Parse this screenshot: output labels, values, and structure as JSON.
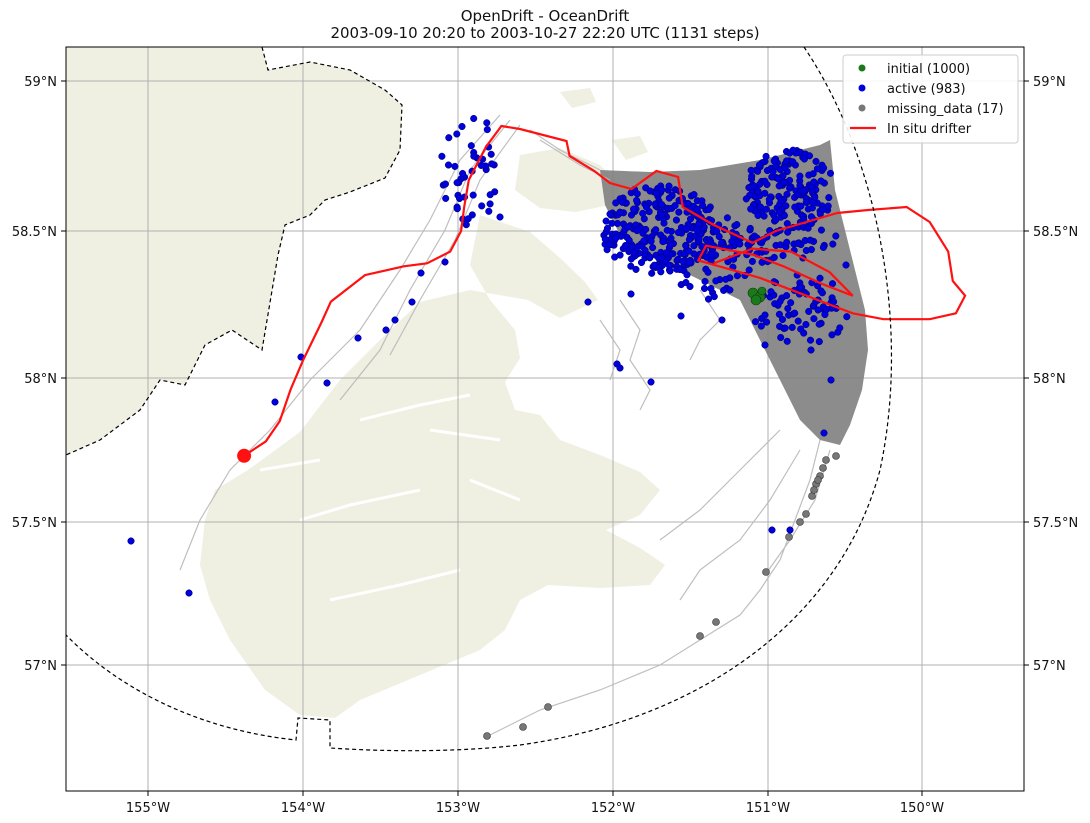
{
  "title": {
    "line1": "OpenDrift - OceanDrift",
    "line2": "2003-09-10 20:20 to 2003-10-27 22:20 UTC (1131 steps)"
  },
  "colors": {
    "land": "#efefe2",
    "grid": "#b0b0b0",
    "trajectory": "#b8b8b8",
    "plume": "#808080",
    "initial": "#1a7a1a",
    "active": "#0000dd",
    "missing": "#777777",
    "drifter": "#ff1111"
  },
  "axes": {
    "lon_ticks": [
      "155°W",
      "154°W",
      "153°W",
      "152°W",
      "151°W",
      "150°W"
    ],
    "lat_ticks": [
      "59°N",
      "58.5°N",
      "58°N",
      "57.5°N",
      "57°N"
    ]
  },
  "legend": {
    "items": [
      {
        "label": "initial (1000)",
        "kind": "initial"
      },
      {
        "label": "active (983)",
        "kind": "active"
      },
      {
        "label": "missing_data (17)",
        "kind": "missing"
      },
      {
        "label": "In situ drifter",
        "kind": "drifter"
      }
    ]
  },
  "chart_data": {
    "type": "map",
    "lon_range": [
      -155.55,
      -149.35
    ],
    "lat_range": [
      56.58,
      59.12
    ],
    "initial_position": {
      "lon": -151.07,
      "lat": 58.28,
      "count": 1000
    },
    "drifter_end": {
      "lon": -154.38,
      "lat": 57.73
    },
    "drifter_track": [
      [
        -154.38,
        57.73
      ],
      [
        -154.24,
        57.78
      ],
      [
        -154.15,
        57.85
      ],
      [
        -154.08,
        57.96
      ],
      [
        -154.0,
        58.06
      ],
      [
        -153.88,
        58.19
      ],
      [
        -153.82,
        58.26
      ],
      [
        -153.6,
        58.35
      ],
      [
        -153.35,
        58.38
      ],
      [
        -153.2,
        58.39
      ],
      [
        -153.05,
        58.43
      ],
      [
        -152.98,
        58.5
      ],
      [
        -152.96,
        58.58
      ],
      [
        -152.93,
        58.67
      ],
      [
        -152.87,
        58.73
      ],
      [
        -152.82,
        58.78
      ],
      [
        -152.72,
        58.85
      ],
      [
        -152.6,
        58.84
      ],
      [
        -152.3,
        58.8
      ],
      [
        -152.28,
        58.75
      ],
      [
        -152.12,
        58.7
      ],
      [
        -152.02,
        58.66
      ],
      [
        -151.88,
        58.64
      ],
      [
        -151.72,
        58.7
      ],
      [
        -151.58,
        58.68
      ],
      [
        -151.55,
        58.58
      ],
      [
        -151.35,
        58.52
      ],
      [
        -151.1,
        58.46
      ],
      [
        -150.95,
        58.5
      ],
      [
        -150.75,
        58.53
      ],
      [
        -150.55,
        58.56
      ],
      [
        -150.35,
        58.57
      ],
      [
        -150.1,
        58.58
      ],
      [
        -149.95,
        58.53
      ],
      [
        -149.83,
        58.43
      ],
      [
        -149.8,
        58.33
      ],
      [
        -149.72,
        58.28
      ],
      [
        -149.78,
        58.22
      ],
      [
        -149.95,
        58.2
      ],
      [
        -150.1,
        58.2
      ],
      [
        -150.25,
        58.2
      ],
      [
        -150.45,
        58.22
      ],
      [
        -150.65,
        58.26
      ],
      [
        -150.85,
        58.3
      ],
      [
        -151.05,
        58.34
      ],
      [
        -151.25,
        58.37
      ],
      [
        -151.45,
        58.4
      ],
      [
        -151.4,
        58.45
      ],
      [
        -151.1,
        58.42
      ],
      [
        -150.9,
        58.38
      ],
      [
        -150.65,
        58.32
      ],
      [
        -150.45,
        58.28
      ],
      [
        -150.6,
        58.36
      ],
      [
        -150.85,
        58.43
      ],
      [
        -151.1,
        58.44
      ],
      [
        -151.35,
        58.39
      ]
    ],
    "boundary": "dashed",
    "grid": true,
    "legend_position": "top-right"
  }
}
